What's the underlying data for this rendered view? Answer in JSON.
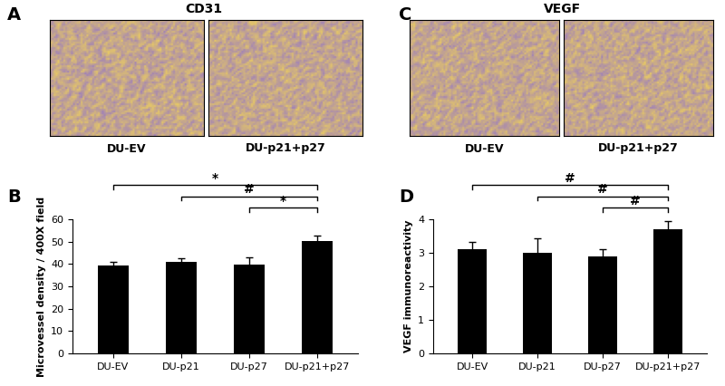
{
  "image_panels": [
    {
      "label": "A",
      "title": "CD31",
      "images": [
        "DU-EV",
        "DU-p21+p27"
      ]
    },
    {
      "label": "C",
      "title": "VEGF",
      "images": [
        "DU-EV",
        "DU-p21+p27"
      ]
    }
  ],
  "chart_data": [
    {
      "type": "bar",
      "label": "B",
      "categories": [
        "DU-EV",
        "DU-p21",
        "DU-p27",
        "DU-p21+p27"
      ],
      "values": [
        39.5,
        40.8,
        39.8,
        50.2
      ],
      "errors": [
        1.5,
        1.8,
        3.0,
        2.5
      ],
      "ylabel": "Microvessel density / 400X field",
      "color": "#000000",
      "ylim": [
        0,
        60
      ],
      "yticks": [
        0,
        10,
        20,
        30,
        40,
        50,
        60
      ],
      "annotations": [
        {
          "from": "DU-EV",
          "to": "DU-p21+p27",
          "text": "*"
        },
        {
          "from": "DU-p21",
          "to": "DU-p21+p27",
          "text": "#"
        },
        {
          "from": "DU-p27",
          "to": "DU-p21+p27",
          "text": "*"
        }
      ]
    },
    {
      "type": "bar",
      "label": "D",
      "categories": [
        "DU-EV",
        "DU-p21",
        "DU-p27",
        "DU-p21+p27"
      ],
      "values": [
        3.1,
        3.0,
        2.9,
        3.7
      ],
      "errors": [
        0.22,
        0.42,
        0.22,
        0.25
      ],
      "ylabel": "VEGF immunoreactivity",
      "color": "#000000",
      "ylim": [
        0,
        4
      ],
      "yticks": [
        0,
        1,
        2,
        3,
        4
      ],
      "annotations": [
        {
          "from": "DU-EV",
          "to": "DU-p21+p27",
          "text": "#"
        },
        {
          "from": "DU-p21",
          "to": "DU-p21+p27",
          "text": "#"
        },
        {
          "from": "DU-p27",
          "to": "DU-p21+p27",
          "text": "#"
        }
      ]
    }
  ]
}
